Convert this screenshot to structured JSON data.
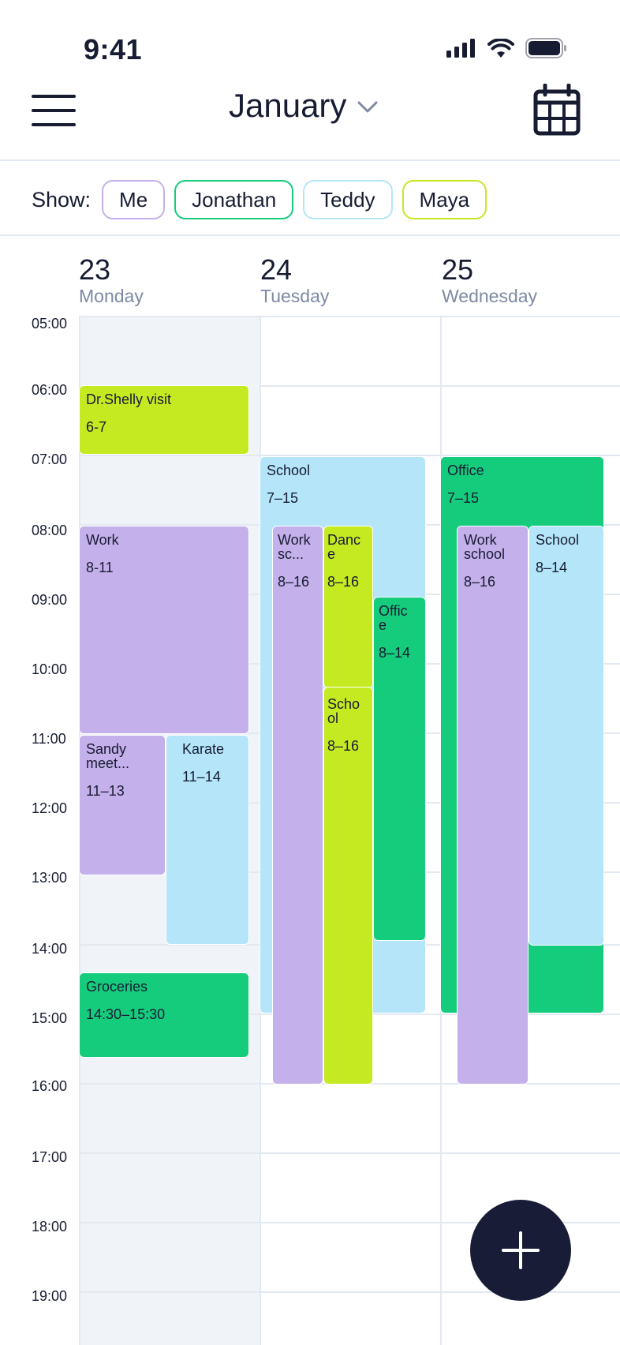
{
  "status": {
    "time": "9:41"
  },
  "header": {
    "month": "January"
  },
  "filters": {
    "label": "Show:",
    "chips": [
      {
        "label": "Me",
        "color": "#c4b0ea"
      },
      {
        "label": "Jonathan",
        "color": "#15cc7d"
      },
      {
        "label": "Teddy",
        "color": "#b4e5f9"
      },
      {
        "label": "Maya",
        "color": "#c5ea22"
      }
    ]
  },
  "days": [
    {
      "num": "23",
      "name": "Monday"
    },
    {
      "num": "24",
      "name": "Tuesday"
    },
    {
      "num": "25",
      "name": "Wednesday"
    }
  ],
  "hours": [
    "05:00",
    "06:00",
    "07:00",
    "08:00",
    "09:00",
    "10:00",
    "11:00",
    "12:00",
    "13:00",
    "14:00",
    "15:00",
    "16:00",
    "17:00",
    "18:00",
    "19:00"
  ],
  "events": [
    {
      "title": "Dr.Shelly visit",
      "time": "6-7",
      "color": "lime"
    },
    {
      "title": "Work",
      "time": "8-11",
      "color": "purple"
    },
    {
      "title": "Sandy meet...",
      "time": "11–13",
      "color": "purple"
    },
    {
      "title": "Karate",
      "time": "11–14",
      "color": "lblue"
    },
    {
      "title": "Groceries",
      "time": "14:30–15:30",
      "color": "green"
    },
    {
      "title": "School",
      "time": "7–15",
      "color": "lblue"
    },
    {
      "title": "Work sc...",
      "time": "8–16",
      "color": "purple"
    },
    {
      "title": "Danc e",
      "time": "8–16",
      "color": "lime"
    },
    {
      "title": "Offic e",
      "time": "8–14",
      "color": "green"
    },
    {
      "title": "Scho ol",
      "time": "8–16",
      "color": "lime"
    },
    {
      "title": "Office",
      "time": "7–15",
      "color": "green"
    },
    {
      "title": "Work school",
      "time": "8–16",
      "color": "purple"
    },
    {
      "title": "School",
      "time": "8–14",
      "color": "lblue"
    }
  ],
  "fab": {
    "icon": "plus-icon"
  },
  "colors": {
    "text": "#171c33",
    "muted": "#7e8aa3",
    "grid": "#e3e9f1",
    "today_bg": "#f0f4f8"
  }
}
